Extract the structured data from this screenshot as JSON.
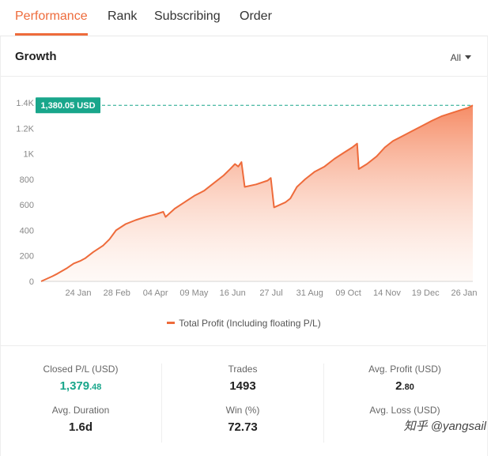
{
  "tabs": [
    {
      "label": "Performance",
      "active": true
    },
    {
      "label": "Rank"
    },
    {
      "label": "Subscribing"
    },
    {
      "label": "Order"
    }
  ],
  "card": {
    "title": "Growth",
    "range": "All"
  },
  "chart_data": {
    "type": "area",
    "x_ticks": [
      "24 Jan",
      "28 Feb",
      "04 Apr",
      "09 May",
      "16 Jun",
      "27 Jul",
      "31 Aug",
      "09 Oct",
      "14 Nov",
      "19 Dec",
      "26 Jan"
    ],
    "y_ticks": [
      "0",
      "200",
      "400",
      "600",
      "800",
      "1K",
      "1.2K",
      "1.4K"
    ],
    "ylim": [
      0,
      1400
    ],
    "grid": false,
    "legend_position": "bottom",
    "current_value_label": "1,380.05 USD",
    "current_value": 1380.05,
    "series": [
      {
        "name": "Total Profit (Including floating P/L)",
        "color": "#ee6b3b",
        "points": [
          [
            0.0,
            0
          ],
          [
            0.35,
            40
          ],
          [
            0.5,
            60
          ],
          [
            0.8,
            105
          ],
          [
            1.0,
            140
          ],
          [
            1.2,
            160
          ],
          [
            1.35,
            180
          ],
          [
            1.6,
            230
          ],
          [
            1.9,
            280
          ],
          [
            2.1,
            330
          ],
          [
            2.3,
            400
          ],
          [
            2.6,
            450
          ],
          [
            2.9,
            480
          ],
          [
            3.2,
            505
          ],
          [
            3.5,
            525
          ],
          [
            3.75,
            545
          ],
          [
            3.82,
            505
          ],
          [
            4.1,
            570
          ],
          [
            4.4,
            620
          ],
          [
            4.7,
            670
          ],
          [
            5.0,
            710
          ],
          [
            5.3,
            770
          ],
          [
            5.6,
            830
          ],
          [
            5.8,
            880
          ],
          [
            5.95,
            920
          ],
          [
            6.05,
            900
          ],
          [
            6.15,
            935
          ],
          [
            6.25,
            740
          ],
          [
            6.6,
            760
          ],
          [
            6.95,
            790
          ],
          [
            7.05,
            810
          ],
          [
            7.15,
            580
          ],
          [
            7.5,
            620
          ],
          [
            7.65,
            650
          ],
          [
            7.85,
            740
          ],
          [
            8.1,
            800
          ],
          [
            8.4,
            860
          ],
          [
            8.7,
            900
          ],
          [
            9.0,
            960
          ],
          [
            9.3,
            1010
          ],
          [
            9.55,
            1050
          ],
          [
            9.7,
            1080
          ],
          [
            9.75,
            880
          ],
          [
            10.0,
            920
          ],
          [
            10.3,
            980
          ],
          [
            10.55,
            1050
          ],
          [
            10.8,
            1100
          ],
          [
            11.1,
            1140
          ],
          [
            11.4,
            1180
          ],
          [
            11.7,
            1220
          ],
          [
            12.0,
            1260
          ],
          [
            12.3,
            1295
          ],
          [
            12.6,
            1320
          ],
          [
            12.9,
            1345
          ],
          [
            13.1,
            1360
          ],
          [
            13.25,
            1380.05
          ]
        ]
      }
    ]
  },
  "stats": {
    "closed_pl": {
      "label": "Closed P/L (USD)",
      "value_main": "1,379",
      "value_dec": ".48"
    },
    "trades": {
      "label": "Trades",
      "value": "1493"
    },
    "avg_profit": {
      "label": "Avg. Profit (USD)",
      "value_main": "2",
      "value_dec": ".80"
    },
    "avg_duration": {
      "label": "Avg. Duration",
      "value": "1.6d"
    },
    "win": {
      "label": "Win (%)",
      "value": "72.73"
    },
    "avg_loss": {
      "label": "Avg. Loss (USD)"
    }
  },
  "watermark": "知乎 @yangsail"
}
